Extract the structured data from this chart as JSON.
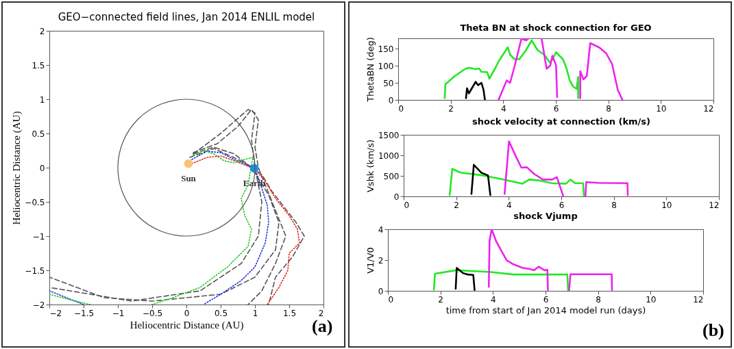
{
  "chart_data": [
    {
      "type": "line",
      "title": "GEO−connected field lines, Jan 2014 ENLIL model",
      "xlabel": "Heliocentric Distance (AU)",
      "ylabel": "Heliocentric Distance (AU)",
      "xlim": [
        -2,
        2
      ],
      "ylim": [
        -2,
        2
      ],
      "xticks": [
        -2,
        -1.5,
        -1,
        -0.5,
        0,
        0.5,
        1,
        1.5,
        2
      ],
      "yticks": [
        -2,
        -1.5,
        -1,
        -0.5,
        0,
        0.5,
        1,
        1.5,
        2
      ],
      "grid": false,
      "annotations": [
        {
          "text": "Sun",
          "x": 0.03,
          "y": 0.06
        },
        {
          "text": "Earth",
          "x": 0.99,
          "y": -0.01
        },
        "(a)"
      ],
      "series": [
        {
          "color": "#555555",
          "line_style": "dashed",
          "x": [
            0.1,
            0.4,
            0.7,
            0.95,
            1.2,
            1.35,
            1.3,
            1.0,
            0.5,
            -0.5,
            -1.2,
            -2
          ],
          "values": [
            0.2,
            0.3,
            0.2,
            0.0,
            -0.4,
            -0.8,
            -1.2,
            -1.6,
            -1.85,
            -1.95,
            -1.9,
            -1.6
          ]
        },
        {
          "color": "#555555",
          "line_style": "dashed",
          "x": [
            0.1,
            0.45,
            0.75,
            0.95,
            1.05,
            1.0,
            1.05,
            1.25,
            1.45,
            1.3,
            1.1,
            0.9
          ],
          "values": [
            0.22,
            0.35,
            0.6,
            0.85,
            0.7,
            0.3,
            0.0,
            -0.5,
            -1.0,
            -1.4,
            -1.8,
            -2
          ]
        },
        {
          "color": "#555555",
          "line_style": "dashed",
          "x": [
            0.05,
            0.4,
            0.8,
            1.1,
            1.25,
            1.6,
            1.72,
            1.55,
            1.3,
            1.2
          ],
          "values": [
            0.15,
            0.28,
            0.1,
            -0.1,
            -0.35,
            -0.8,
            -1.0,
            -1.3,
            -1.6,
            -2
          ]
        },
        {
          "color": "#555555",
          "line_style": "dashed",
          "x": [
            0.1,
            0.5,
            0.9,
            1.0,
            0.95,
            1.0,
            1.1,
            1.05,
            0.8,
            0.2,
            -0.8,
            -2
          ],
          "values": [
            0.2,
            0.5,
            0.85,
            0.8,
            0.4,
            0.0,
            -0.5,
            -1.0,
            -1.4,
            -1.8,
            -1.95,
            -1.75
          ]
        },
        {
          "color": "#e8221b",
          "line_style": "dotted",
          "x": [
            0.08,
            0.3,
            0.5,
            0.7,
            0.9,
            1.0,
            1.15,
            1.3,
            1.5,
            1.62,
            1.65,
            1.5,
            1.48,
            1.35,
            1.18
          ],
          "values": [
            0.06,
            0.15,
            0.17,
            0.1,
            0.02,
            -0.02,
            -0.2,
            -0.45,
            -0.7,
            -0.9,
            -1.1,
            -1.25,
            -1.5,
            -1.75,
            -2
          ]
        },
        {
          "color": "#1a2ee0",
          "line_style": "dotted",
          "x": [
            0.08,
            0.3,
            0.5,
            0.7,
            0.9,
            1.0,
            1.1,
            1.18,
            1.2,
            1.15,
            1.0,
            0.8,
            0.5,
            0.25
          ],
          "values": [
            0.12,
            0.24,
            0.22,
            0.12,
            0.04,
            -0.02,
            -0.3,
            -0.55,
            -0.8,
            -1.1,
            -1.45,
            -1.65,
            -1.85,
            -2
          ]
        },
        {
          "color": "#1a2ee0",
          "line_style": "dotted",
          "x": [
            -2,
            -1.75,
            -1.5
          ],
          "values": [
            -1.8,
            -1.9,
            -2
          ]
        },
        {
          "color": "#22cc22",
          "line_style": "dotted",
          "x": [
            0.1,
            0.25,
            0.4,
            0.55,
            0.7,
            0.85,
            0.97,
            0.95,
            0.9,
            0.8,
            0.85,
            0.95,
            0.9,
            0.6,
            0.2,
            -0.2,
            -0.5
          ],
          "values": [
            0.18,
            0.25,
            0.2,
            0.1,
            0.07,
            0.12,
            0.15,
            0.05,
            -0.25,
            -0.45,
            -0.7,
            -0.9,
            -1.15,
            -1.45,
            -1.75,
            -1.9,
            -2
          ]
        },
        {
          "color": "#22cc22",
          "line_style": "dotted",
          "x": [
            -2,
            -1.7,
            -1.4
          ],
          "values": [
            -1.85,
            -1.93,
            -2
          ]
        },
        {
          "type": "scatter",
          "color": "#f9c27a",
          "marker": "circle",
          "x": [
            0.03
          ],
          "values": [
            0.06
          ]
        },
        {
          "type": "scatter",
          "color": "#1f8fe0",
          "marker": "circle",
          "x": [
            0.99
          ],
          "values": [
            -0.01
          ]
        }
      ]
    },
    {
      "type": "line",
      "title": "Theta BN at shock connection for GEO",
      "ylabel": "ThetaBN (deg)",
      "xlim": [
        0,
        12
      ],
      "ylim": [
        0,
        180
      ],
      "xticks": [
        0,
        2,
        4,
        6,
        8,
        10,
        12
      ],
      "yticks": [
        0,
        50,
        100,
        150
      ],
      "grid": false,
      "series": [
        {
          "color": "#22e822",
          "x": [
            1.77,
            1.8,
            2.16,
            2.56,
            2.69,
            2.95,
            3.08,
            3.17,
            3.39,
            3.47,
            3.69,
            3.82,
            4.08,
            4.17,
            4.26,
            4.43,
            4.61,
            4.87,
            5.08,
            5.3,
            5.56,
            5.79,
            6.01,
            6.27,
            6.4,
            6.53,
            6.66,
            6.79,
            6.85,
            6.85
          ],
          "values": [
            5,
            46,
            70,
            91,
            94,
            90,
            92,
            82,
            81,
            62,
            92,
            112,
            143,
            154,
            132,
            119,
            119,
            146,
            174,
            146,
            132,
            108,
            139,
            119,
            94,
            57,
            39,
            32,
            67,
            5
          ]
        },
        {
          "color": "#000000",
          "x": [
            2.58,
            2.62,
            2.69,
            2.82,
            2.95,
            3.04,
            3.17,
            3.25,
            3.3
          ],
          "values": [
            5,
            34,
            19,
            36,
            53,
            43,
            50,
            29,
            1
          ]
        },
        {
          "color": "#ee22ee",
          "x": [
            3.82,
            4.13,
            4.26,
            4.43,
            4.69,
            4.87,
            4.96,
            5.2,
            5.46,
            5.65,
            5.79,
            5.87,
            6.01,
            6.05,
            6.5,
            6.93,
            6.93,
            7.05,
            7.18,
            7.31,
            7.66,
            7.92,
            8.14,
            8.36,
            8.53
          ],
          "values": [
            0,
            57,
            50,
            98,
            179,
            174,
            179,
            null,
            179,
            91,
            101,
            129,
            101,
            8,
            null,
            5,
            84,
            60,
            70,
            166,
            153,
            136,
            105,
            29,
            1
          ]
        }
      ]
    },
    {
      "type": "line",
      "title": "shock velocity at connection (km/s)",
      "ylabel": "Vshk (km/s)",
      "xlim": [
        0,
        12
      ],
      "ylim": [
        0,
        1500
      ],
      "xticks": [
        0,
        2,
        4,
        6,
        8,
        10,
        12
      ],
      "yticks": [
        0,
        500,
        1000,
        1500
      ],
      "grid": false,
      "series": [
        {
          "color": "#22e822",
          "x": [
            1.75,
            1.85,
            2.16,
            3.03,
            3.73,
            4.52,
            4.78,
            5.13,
            5.65,
            6.18,
            6.35,
            6.53,
            6.83,
            6.86
          ],
          "values": [
            30,
            670,
            580,
            510,
            420,
            310,
            410,
            390,
            320,
            310,
            410,
            320,
            320,
            20
          ]
        },
        {
          "color": "#000000",
          "x": [
            2.58,
            2.67,
            2.95,
            3.21,
            3.3
          ],
          "values": [
            60,
            770,
            580,
            510,
            30
          ]
        },
        {
          "color": "#ee22ee",
          "x": [
            3.84,
            4.01,
            4.26,
            4.48,
            4.69,
            4.96,
            5.3,
            5.65,
            5.83,
            6.07,
            6.5,
            6.92,
            6.95,
            7.4,
            8.52,
            8.53
          ],
          "values": [
            60,
            1340,
            990,
            700,
            710,
            550,
            410,
            410,
            470,
            20,
            null,
            20,
            350,
            330,
            320,
            30
          ]
        }
      ]
    },
    {
      "type": "line",
      "title": "shock Vjump",
      "xlabel": "time from start of Jan 2014 model run (days)",
      "ylabel": "V1/V0",
      "xlim": [
        0,
        12
      ],
      "ylim": [
        0,
        4
      ],
      "xticks": [
        0,
        2,
        4,
        6,
        8,
        10,
        12
      ],
      "yticks": [
        0,
        2,
        4
      ],
      "grid": false,
      "annotations": [
        "(b)"
      ],
      "series": [
        {
          "color": "#22e822",
          "x": [
            1.75,
            1.79,
            2.6,
            3.91,
            4.78,
            6.83,
            6.86
          ],
          "values": [
            0.08,
            1.11,
            1.34,
            1.22,
            1.06,
            1.06,
            0.03
          ]
        },
        {
          "color": "#000000",
          "x": [
            2.58,
            2.62,
            2.86,
            3.04,
            3.25,
            3.3
          ],
          "values": [
            0.14,
            1.49,
            1.15,
            1.06,
            1.03,
            0.06
          ]
        },
        {
          "color": "#ee22ee",
          "x": [
            3.84,
            3.87,
            3.95,
            4.13,
            4.52,
            4.78,
            5.13,
            5.39,
            5.56,
            5.74,
            5.96,
            6.07,
            6.09,
            6.5,
            6.9,
            6.95,
            8.52,
            8.53
          ],
          "values": [
            0.26,
            3.26,
            4.0,
            3.18,
            1.98,
            1.72,
            1.49,
            1.42,
            1.34,
            1.57,
            1.34,
            1.37,
            0.06,
            null,
            0.06,
            1.08,
            1.08,
            0.06
          ]
        }
      ]
    }
  ]
}
